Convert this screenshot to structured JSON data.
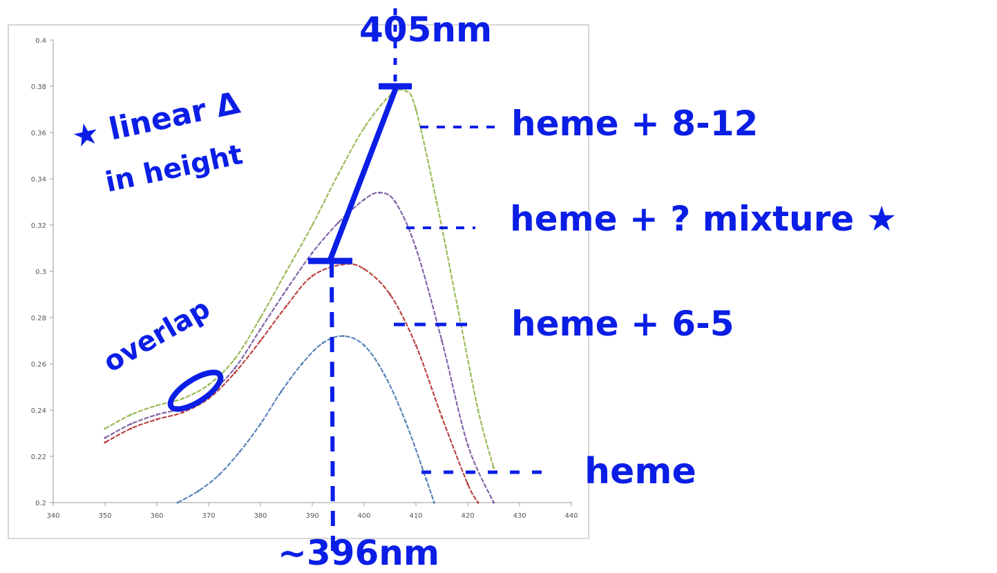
{
  "chart_data": {
    "type": "line",
    "xlim": [
      340,
      440
    ],
    "ylim": [
      0.2,
      0.4
    ],
    "x_ticks": [
      340,
      350,
      360,
      370,
      380,
      390,
      400,
      410,
      420,
      430,
      440
    ],
    "y_ticks": [
      0.2,
      0.22,
      0.24,
      0.26,
      0.28,
      0.3,
      0.32,
      0.34,
      0.36,
      0.38,
      0.4
    ],
    "grid": false,
    "series": [
      {
        "color": "#5a84b8",
        "x": [
          364,
          368,
          372,
          376,
          380,
          384,
          388,
          392,
          396,
          400,
          404,
          408,
          412,
          413.5
        ],
        "y": [
          0.2,
          0.205,
          0.212,
          0.222,
          0.234,
          0.248,
          0.26,
          0.269,
          0.272,
          0.268,
          0.255,
          0.235,
          0.21,
          0.2
        ]
      },
      {
        "color": "#b94442",
        "x": [
          350,
          355,
          360,
          365,
          370,
          375,
          380,
          385,
          390,
          396,
          400,
          405,
          410,
          415,
          420,
          422
        ],
        "y": [
          0.226,
          0.232,
          0.236,
          0.239,
          0.245,
          0.256,
          0.27,
          0.285,
          0.298,
          0.303,
          0.301,
          0.29,
          0.268,
          0.237,
          0.208,
          0.2
        ]
      },
      {
        "color": "#8266a8",
        "x": [
          350,
          355,
          360,
          365,
          370,
          375,
          380,
          385,
          390,
          395,
          400,
          403,
          406,
          410,
          415,
          420,
          425
        ],
        "y": [
          0.228,
          0.234,
          0.238,
          0.241,
          0.247,
          0.258,
          0.275,
          0.292,
          0.308,
          0.321,
          0.331,
          0.334,
          0.33,
          0.31,
          0.27,
          0.225,
          0.2
        ]
      },
      {
        "color": "#9bbb59",
        "x": [
          350,
          355,
          360,
          365,
          370,
          375,
          380,
          385,
          390,
          395,
          400,
          405,
          408,
          410,
          414,
          418,
          422,
          425
        ],
        "y": [
          0.232,
          0.238,
          0.242,
          0.245,
          0.251,
          0.262,
          0.28,
          0.3,
          0.32,
          0.342,
          0.362,
          0.376,
          0.378,
          0.37,
          0.33,
          0.285,
          0.24,
          0.215
        ]
      }
    ]
  },
  "annotations": {
    "peak_high": "405nm",
    "peak_low": "~396nm",
    "linear_note_line1": "★ linear Δ",
    "linear_note_line2": "in height",
    "overlap_note": "overlap",
    "label_green": "heme + 8-12",
    "label_purple": "heme + ? mixture ★",
    "label_red": "heme + 6-5",
    "label_blue": "heme"
  },
  "ink_color": "#0a1ee6"
}
